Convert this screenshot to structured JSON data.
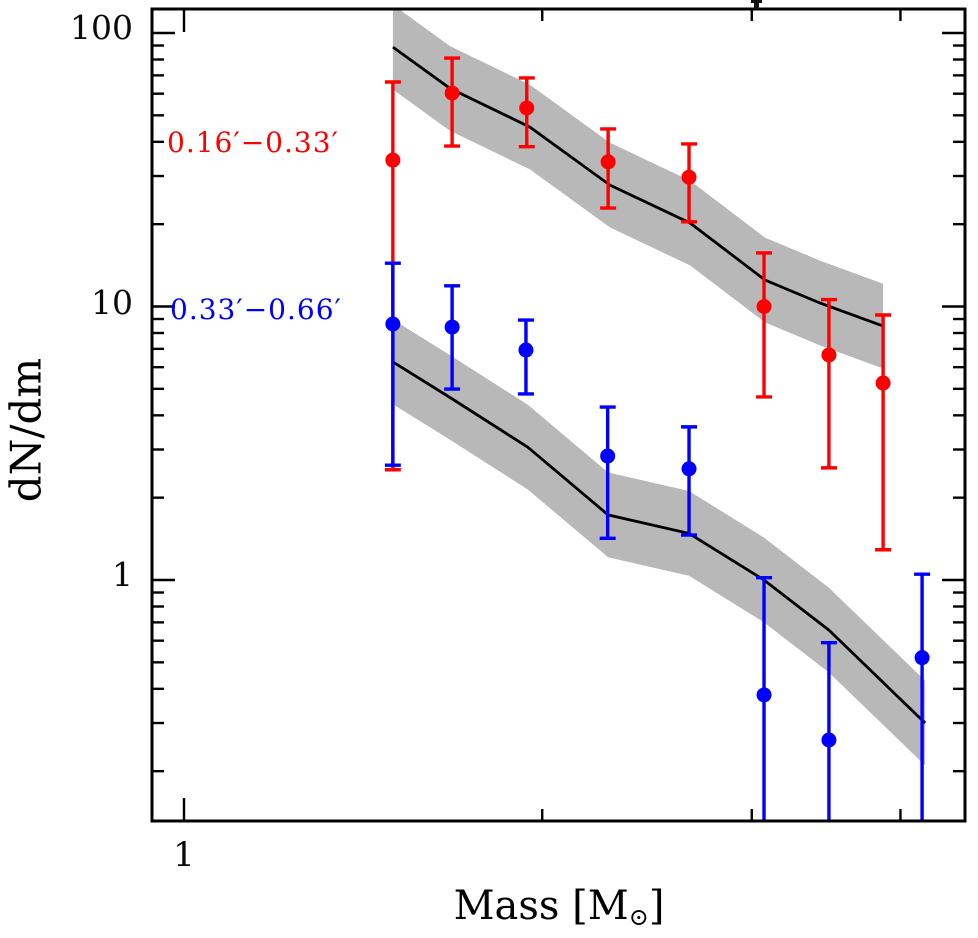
{
  "figure": {
    "background": "#ffffff",
    "frame_color": "#000000"
  },
  "annotations": {
    "cropped_title_fragment": true
  },
  "chart_data": {
    "type": "scatter",
    "title": "",
    "ylabel": "dN/dm",
    "xlabel": {
      "prefix": "Mass [M",
      "sub": "⊙",
      "suffix": "]"
    },
    "x_axis": {
      "scale": "log",
      "min": 0.94,
      "max": 4.53,
      "major_ticks": [
        {
          "value": 1,
          "label": "1"
        }
      ],
      "minor_tick_values": [
        2,
        3,
        4
      ]
    },
    "y_axis": {
      "scale": "log",
      "min": 0.132,
      "max": 120,
      "major_ticks": [
        {
          "value": 100,
          "label": "100"
        },
        {
          "value": 10,
          "label": "10"
        },
        {
          "value": 1,
          "label": "1"
        }
      ]
    },
    "legend": {
      "position": "upper-left-inside",
      "entries": [
        {
          "label": "0.16′−0.33′",
          "color": "#ff0000"
        },
        {
          "label": "0.33′−0.66′",
          "color": "#0000ff"
        }
      ]
    },
    "series": [
      {
        "name": "0.16′−0.33′",
        "color": "#ff0000",
        "marker": "circle",
        "points": [
          {
            "mass": 1.498,
            "value": 34.3,
            "err_lo": 2.53,
            "err_hi": 66.2
          },
          {
            "mass": 1.68,
            "value": 60.3,
            "err_lo": 38.6,
            "err_hi": 81.0
          },
          {
            "mass": 1.941,
            "value": 53.2,
            "err_lo": 38.4,
            "err_hi": 68.5
          },
          {
            "mass": 2.272,
            "value": 33.8,
            "err_lo": 22.9,
            "err_hi": 44.6
          },
          {
            "mass": 2.657,
            "value": 29.7,
            "err_lo": 20.4,
            "err_hi": 39.3
          },
          {
            "mass": 3.072,
            "value": 10.0,
            "err_lo": 4.67,
            "err_hi": 15.7
          },
          {
            "mass": 3.483,
            "value": 6.65,
            "err_lo": 2.57,
            "err_hi": 10.6
          },
          {
            "mass": 3.868,
            "value": 5.25,
            "err_lo": 1.29,
            "err_hi": 9.31
          }
        ]
      },
      {
        "name": "0.33′−0.66′",
        "color": "#0000ff",
        "marker": "circle",
        "points": [
          {
            "mass": 1.498,
            "value": 8.63,
            "err_lo": 2.63,
            "err_hi": 14.4
          },
          {
            "mass": 1.68,
            "value": 8.41,
            "err_lo": 4.99,
            "err_hi": 11.9
          },
          {
            "mass": 1.938,
            "value": 6.93,
            "err_lo": 4.79,
            "err_hi": 8.92
          },
          {
            "mass": 2.27,
            "value": 2.84,
            "err_lo": 1.42,
            "err_hi": 4.29
          },
          {
            "mass": 2.657,
            "value": 2.55,
            "err_lo": 1.46,
            "err_hi": 3.63
          },
          {
            "mass": 3.072,
            "value": 0.38,
            "err_lo": null,
            "err_hi": 1.02
          },
          {
            "mass": 3.483,
            "value": 0.26,
            "err_lo": null,
            "err_hi": 0.59
          },
          {
            "mass": 4.171,
            "value": 0.52,
            "err_lo": null,
            "err_hi": 1.05
          }
        ]
      }
    ],
    "model_bands": [
      {
        "name": "model 0.16′−0.33′",
        "line_color": "#000000",
        "band_color": "#b8b8b8",
        "band_half_dex": 0.155,
        "line": [
          {
            "mass": 1.498,
            "value": 88.8
          },
          {
            "mass": 1.673,
            "value": 62.7
          },
          {
            "mass": 1.953,
            "value": 45.3
          },
          {
            "mass": 2.28,
            "value": 27.8
          },
          {
            "mass": 2.662,
            "value": 20.2
          },
          {
            "mass": 3.078,
            "value": 12.5
          },
          {
            "mass": 3.423,
            "value": 10.3
          },
          {
            "mass": 3.868,
            "value": 8.48
          }
        ]
      },
      {
        "name": "model 0.33′−0.66′",
        "line_color": "#000000",
        "band_color": "#b8b8b8",
        "band_half_dex": 0.155,
        "line": [
          {
            "mass": 1.498,
            "value": 6.27
          },
          {
            "mass": 1.673,
            "value": 4.65
          },
          {
            "mass": 1.945,
            "value": 3.06
          },
          {
            "mass": 2.272,
            "value": 1.73
          },
          {
            "mass": 2.657,
            "value": 1.48
          },
          {
            "mass": 3.072,
            "value": 1.0
          },
          {
            "mass": 3.483,
            "value": 0.656
          },
          {
            "mass": 4.195,
            "value": 0.3
          }
        ]
      }
    ]
  }
}
